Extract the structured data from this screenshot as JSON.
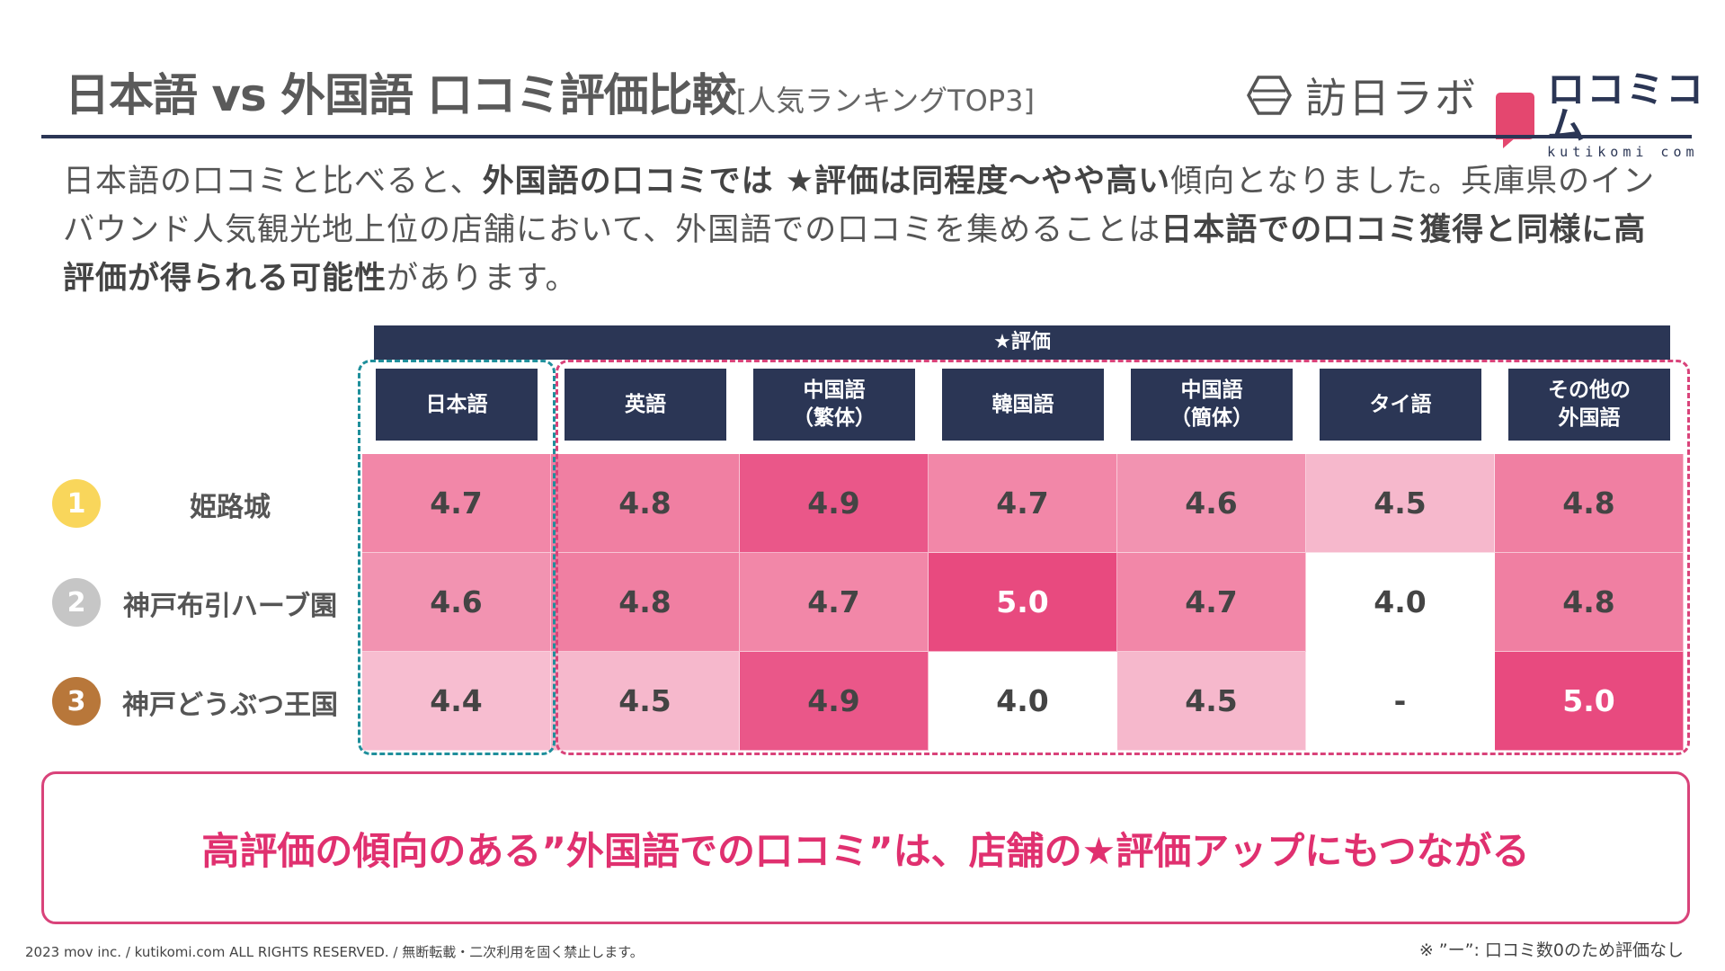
{
  "header": {
    "title": "日本語 vs 外国語 口コミ評価比較",
    "subtitle": "[人気ランキングTOP3]",
    "logo_houjitsu": "訪日ラボ",
    "logo_kuchikomi": "ロコミコム",
    "logo_kuchikomi_url": "kutikomi com"
  },
  "description": {
    "p1": "日本語の口コミと比べると、",
    "b1": "外国語の口コミでは ★評価は同程度〜やや高い",
    "p2": "傾向となりました。兵庫県のインバウンド人気観光地上位の店舗において、外国語での口コミを集めることは",
    "b2": "日本語での口コミ獲得と同様に高評価が得られる可能性",
    "p3": "があります。"
  },
  "chart_data": {
    "type": "heatmap",
    "header": "★評価",
    "columns": [
      "日本語",
      "英語",
      "中国語\n（繁体）",
      "韓国語",
      "中国語\n（簡体）",
      "タイ語",
      "その他の\n外国語"
    ],
    "rows": [
      {
        "rank": "1",
        "name": "姫路城",
        "values": [
          "4.7",
          "4.8",
          "4.9",
          "4.7",
          "4.6",
          "4.5",
          "4.8"
        ]
      },
      {
        "rank": "2",
        "name": "神戸布引ハーブ園",
        "values": [
          "4.6",
          "4.8",
          "4.7",
          "5.0",
          "4.7",
          "4.0",
          "4.8"
        ]
      },
      {
        "rank": "3",
        "name": "神戸どうぶつ王国",
        "values": [
          "4.4",
          "4.5",
          "4.9",
          "4.0",
          "4.5",
          "-",
          "5.0"
        ]
      }
    ],
    "scale": {
      "min": 4.0,
      "max": 5.0
    },
    "colors": {
      "header_bg": "#2b3655",
      "high": "#e84a7f",
      "mid": "#f07fa2",
      "low": "#f6b8cc",
      "none": "#ffffff"
    }
  },
  "rank_colors": [
    "#f9d65b",
    "#c6c6c6",
    "#b8773a"
  ],
  "conclusion": "高評価の傾向のある”外国語での口コミ”は、店舗の★評価アップにもつながる",
  "footer": {
    "copyright": "2023 mov inc. / kutikomi.com ALL RIGHTS RESERVED. / 無断転載・二次利用を固く禁止します。",
    "note": "※ ”ー”: 口コミ数0のため評価なし"
  }
}
